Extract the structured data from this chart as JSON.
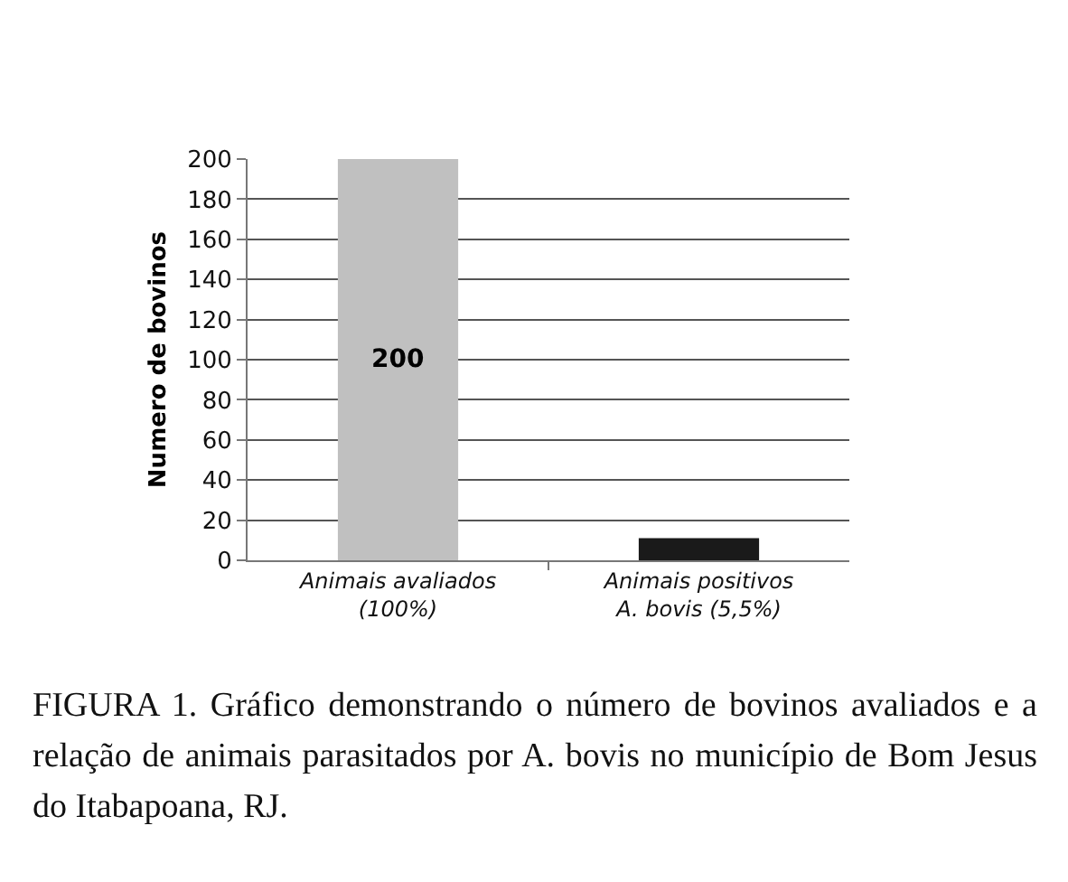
{
  "chart_data": {
    "type": "bar",
    "ylabel": "Numero de bovinos",
    "categories": [
      "Animais avaliados\n(100%)",
      "Animais positivos\nA. bovis (5,5%)"
    ],
    "values": [
      200,
      11
    ],
    "colors": [
      "#c0c0c0",
      "#1a1a1a"
    ],
    "value_labels": [
      "200",
      null
    ],
    "ylim": [
      0,
      200
    ],
    "yticks": [
      0,
      20,
      40,
      60,
      80,
      100,
      120,
      140,
      160,
      180,
      200
    ],
    "grid": "y",
    "annotations": [
      "FIGURA 1. Gráfico demonstrando o número de bovinos avaliados e a relação de animais parasitados por A. bovis no município de Bom Jesus do Itabapoana, RJ."
    ]
  }
}
